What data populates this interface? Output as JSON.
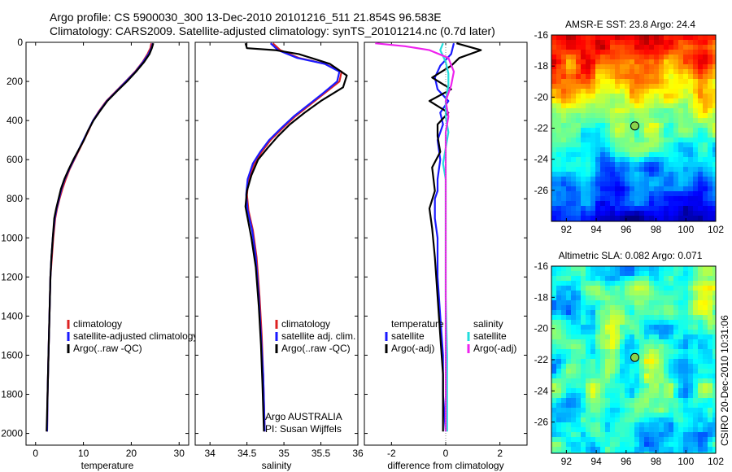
{
  "header": {
    "line1": "Argo profile: CS 5900030_300 13-Dec-2010 20101216_511 21.854S 96.583E",
    "line2": "Climatology: CARS2009. Satellite-adjusted climatology: synTS_20101214.nc (0.7d later)"
  },
  "side_label": "CSIRO 20-Dec-2010 10:31:06",
  "colors": {
    "climatology": "#dd2222",
    "satellite_adjusted": "#1a1aff",
    "argo": "#000000",
    "salinity_satellite": "#22dddd",
    "salinity_argo": "#ee22ee",
    "marker": "#8bd34a"
  },
  "chart_data": [
    {
      "type": "line",
      "id": "temperature",
      "xlabel": "temperature",
      "ylabel": "",
      "xlim": [
        -2,
        32
      ],
      "ylim": [
        2060,
        0
      ],
      "xticks": [
        0,
        10,
        20,
        30
      ],
      "yticks": [
        0,
        200,
        400,
        600,
        800,
        1000,
        1200,
        1400,
        1600,
        1800,
        2000
      ],
      "legend": [
        "climatology",
        "satellite-adjusted climatology",
        "Argo(..raw -QC)"
      ],
      "series": [
        {
          "name": "climatology",
          "color": "#dd2222",
          "x": [
            24.2,
            24.0,
            23.4,
            22.4,
            20.8,
            18.8,
            16.8,
            14.8,
            13.3,
            12.0,
            11.1,
            10.1,
            9.1,
            8.1,
            7.1,
            6.3,
            5.6,
            5.0,
            4.5,
            4.1,
            3.7,
            3.4,
            3.1,
            2.9,
            2.7,
            2.5,
            2.4
          ],
          "y": [
            5,
            30,
            60,
            100,
            150,
            200,
            250,
            300,
            350,
            400,
            450,
            500,
            550,
            600,
            650,
            700,
            750,
            800,
            850,
            900,
            1000,
            1100,
            1200,
            1400,
            1600,
            1800,
            1990
          ]
        },
        {
          "name": "satellite-adjusted climatology",
          "color": "#1a1aff",
          "x": [
            24.5,
            24.2,
            23.6,
            22.5,
            20.9,
            18.9,
            16.9,
            14.9,
            13.4,
            12.0,
            11.0,
            10.0,
            9.0,
            8.0,
            7.0,
            6.1,
            5.4,
            4.9,
            4.4,
            4.0,
            3.6,
            3.3,
            3.1,
            2.9,
            2.7,
            2.5,
            2.4
          ],
          "y": [
            5,
            30,
            60,
            100,
            150,
            200,
            250,
            300,
            350,
            400,
            450,
            500,
            550,
            600,
            650,
            700,
            750,
            800,
            850,
            900,
            1000,
            1100,
            1200,
            1400,
            1600,
            1800,
            1990
          ]
        },
        {
          "name": "Argo(..raw -QC)",
          "color": "#000000",
          "x": [
            24.6,
            24.3,
            23.8,
            22.7,
            21.0,
            19.1,
            17.0,
            15.0,
            13.5,
            12.1,
            11.0,
            10.1,
            9.0,
            7.9,
            6.9,
            6.0,
            5.3,
            4.8,
            4.3,
            3.9,
            3.6,
            3.3,
            3.1,
            2.9,
            2.7,
            2.5,
            2.3
          ],
          "y": [
            5,
            30,
            60,
            100,
            150,
            200,
            250,
            300,
            350,
            400,
            450,
            500,
            550,
            600,
            650,
            700,
            750,
            800,
            850,
            900,
            1000,
            1100,
            1200,
            1400,
            1600,
            1800,
            1990
          ]
        }
      ]
    },
    {
      "type": "line",
      "id": "salinity",
      "xlabel": "salinity",
      "ylabel": "",
      "xlim": [
        33.8,
        36.0
      ],
      "ylim": [
        2060,
        0
      ],
      "xticks": [
        34,
        34.5,
        35,
        35.5,
        36
      ],
      "yticks": [
        0,
        200,
        400,
        600,
        800,
        1000,
        1200,
        1400,
        1600,
        1800,
        2000
      ],
      "legend": [
        "climatology",
        "satellite adj. clim.",
        "Argo(..raw -QC)"
      ],
      "annotation": [
        "Argo AUSTRALIA",
        "PI: Susan Wijffels"
      ],
      "series": [
        {
          "name": "climatology",
          "color": "#dd2222",
          "x": [
            34.85,
            34.95,
            35.2,
            35.55,
            35.78,
            35.75,
            35.55,
            35.35,
            35.15,
            34.98,
            34.82,
            34.7,
            34.6,
            34.52,
            34.5,
            34.52,
            34.58,
            34.63,
            34.67,
            34.7,
            34.72,
            34.74
          ],
          "y": [
            5,
            40,
            80,
            110,
            150,
            200,
            260,
            320,
            380,
            440,
            500,
            560,
            620,
            700,
            780,
            860,
            960,
            1100,
            1300,
            1500,
            1700,
            1990
          ]
        },
        {
          "name": "satellite adj. clim.",
          "color": "#1a1aff",
          "x": [
            34.82,
            34.92,
            35.18,
            35.55,
            35.75,
            35.72,
            35.53,
            35.33,
            35.13,
            34.96,
            34.8,
            34.68,
            34.58,
            34.51,
            34.49,
            34.51,
            34.57,
            34.62,
            34.66,
            34.69,
            34.72,
            34.74
          ],
          "y": [
            5,
            40,
            80,
            110,
            150,
            200,
            260,
            320,
            380,
            440,
            500,
            560,
            620,
            700,
            780,
            860,
            960,
            1100,
            1300,
            1500,
            1700,
            1990
          ]
        },
        {
          "name": "Argo(..raw -QC)",
          "color": "#000000",
          "x": [
            34.48,
            34.5,
            34.88,
            35.2,
            35.62,
            35.85,
            35.8,
            35.5,
            35.28,
            35.08,
            34.92,
            34.78,
            34.65,
            34.56,
            34.5,
            34.48,
            34.5,
            34.56,
            34.62,
            34.66,
            34.69,
            34.71,
            34.73
          ],
          "y": [
            5,
            30,
            40,
            60,
            110,
            170,
            230,
            300,
            360,
            420,
            480,
            540,
            600,
            680,
            760,
            840,
            880,
            1000,
            1150,
            1350,
            1550,
            1750,
            1990
          ]
        }
      ]
    },
    {
      "type": "line",
      "id": "difference",
      "xlabel": "difference from climatology",
      "ylabel": "",
      "xlim": [
        -3,
        3
      ],
      "ylim": [
        2060,
        0
      ],
      "xticks": [
        -2,
        0,
        2
      ],
      "yticks": [
        0,
        200,
        400,
        600,
        800,
        1000,
        1200,
        1400,
        1600,
        1800,
        2000
      ],
      "legend_left": [
        "temperature",
        "satellite",
        "Argo(-adj)"
      ],
      "legend_right": [
        "salinity",
        "satellite",
        "Argo(-adj)"
      ],
      "series": [
        {
          "name": "temperature satellite",
          "color": "#1a1aff",
          "x": [
            0.3,
            0.2,
            -0.2,
            -0.4,
            -0.3,
            0.1,
            -0.2,
            -0.1,
            -0.3,
            -0.2,
            -0.3,
            -0.3,
            -0.4,
            -0.4,
            -0.3,
            -0.3,
            -0.2,
            -0.1,
            -0.1,
            0.0
          ],
          "y": [
            5,
            60,
            120,
            180,
            240,
            300,
            360,
            420,
            500,
            600,
            700,
            760,
            800,
            900,
            1000,
            1200,
            1400,
            1600,
            1800,
            1990
          ]
        },
        {
          "name": "temperature Argo(-adj)",
          "color": "#000000",
          "x": [
            0.4,
            1.3,
            0.5,
            0.2,
            -0.5,
            0.2,
            -0.6,
            0.1,
            -0.3,
            -0.3,
            -0.2,
            -0.5,
            -0.4,
            -0.6,
            -0.5,
            -0.4,
            -0.3,
            -0.2,
            -0.1,
            -0.1
          ],
          "y": [
            5,
            40,
            80,
            120,
            180,
            240,
            300,
            360,
            420,
            480,
            560,
            640,
            760,
            850,
            950,
            1100,
            1300,
            1500,
            1700,
            1990
          ]
        },
        {
          "name": "salinity satellite",
          "color": "#22dddd",
          "x": [
            -0.1,
            -0.2,
            0.0,
            0.1,
            0.1,
            0.0,
            0.0,
            0.1,
            0.0,
            -0.1,
            0.0,
            0.0,
            0.0,
            0.0,
            0.05,
            0.05,
            0.05
          ],
          "y": [
            5,
            40,
            100,
            160,
            220,
            300,
            380,
            460,
            540,
            620,
            700,
            800,
            1000,
            1300,
            1600,
            1800,
            1990
          ]
        },
        {
          "name": "salinity Argo(-adj)",
          "color": "#ee22ee",
          "x": [
            -2.6,
            -1.5,
            -0.6,
            0.1,
            0.3,
            0.2,
            0.0,
            0.1,
            0.0,
            0.0,
            0.0,
            0.0,
            0.0,
            0.0,
            0.0,
            0.0
          ],
          "y": [
            5,
            20,
            40,
            80,
            150,
            220,
            300,
            380,
            460,
            540,
            620,
            700,
            800,
            1100,
            1500,
            1990
          ]
        }
      ]
    },
    {
      "type": "heatmap",
      "id": "sst_map",
      "title": "AMSR-E SST: 23.8 Argo: 24.4",
      "xlim": [
        91,
        102
      ],
      "ylim": [
        -28,
        -16
      ],
      "xticks": [
        92,
        94,
        96,
        98,
        100,
        102
      ],
      "yticks": [
        -16,
        -18,
        -20,
        -22,
        -24,
        -26
      ],
      "marker": {
        "lon": 96.583,
        "lat": -21.854
      },
      "value_range": [
        20,
        26
      ]
    },
    {
      "type": "heatmap",
      "id": "sla_map",
      "title": "Altimetric SLA: 0.082 Argo: 0.071",
      "xlim": [
        91,
        102
      ],
      "ylim": [
        -28,
        -16
      ],
      "xticks": [
        92,
        94,
        96,
        98,
        100,
        102
      ],
      "yticks": [
        -16,
        -18,
        -20,
        -22,
        -24,
        -26
      ],
      "marker": {
        "lon": 96.583,
        "lat": -21.854
      },
      "value_range": [
        -0.2,
        0.3
      ]
    }
  ]
}
